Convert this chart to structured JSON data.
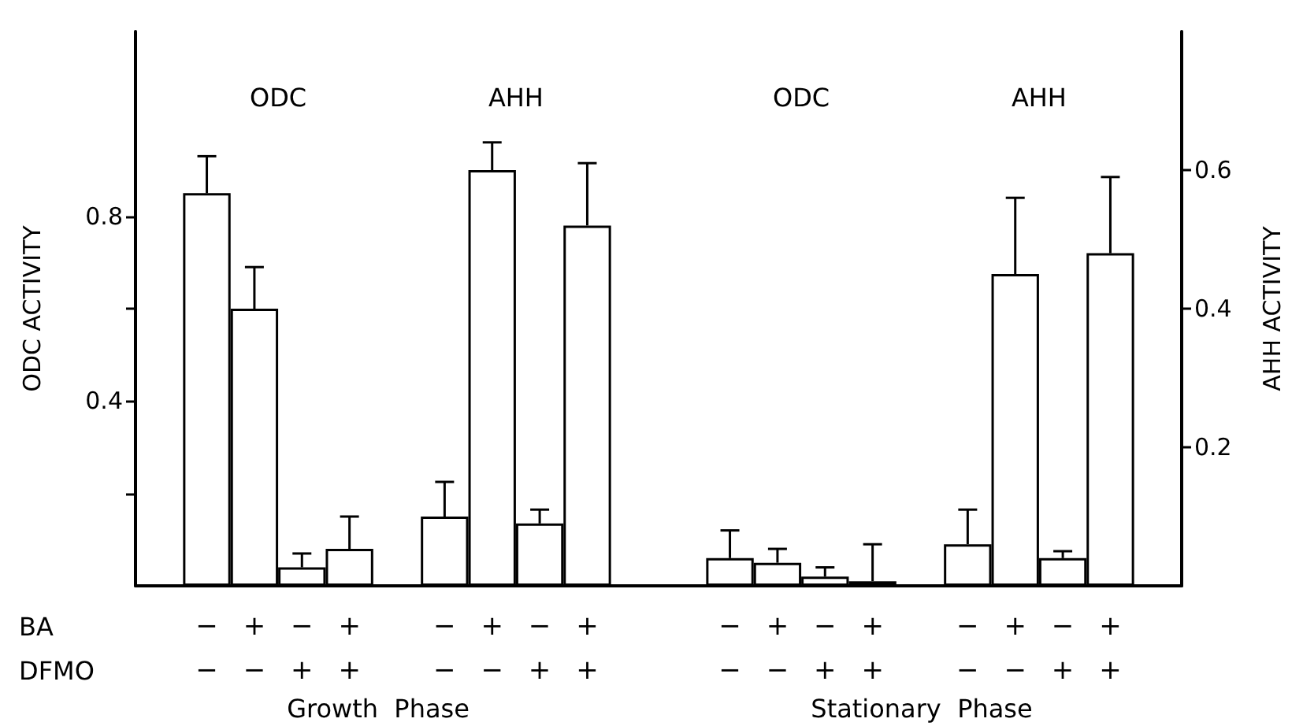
{
  "chart_data": {
    "type": "bar",
    "categories": [
      null,
      "−\n−",
      "+\n−",
      "−\n+",
      "+\n+",
      null,
      "−\n−",
      "+\n−",
      "−\n+",
      "+\n+",
      null,
      null,
      "−\n−",
      "+\n−",
      "−\n+",
      "+\n+",
      null,
      "−\n−",
      "+\n−",
      "−\n+",
      "+\n+",
      null
    ],
    "series": [
      {
        "color": "#ffffff",
        "values": [
          null,
          0.85,
          0.6,
          0.04,
          0.08,
          null,
          null,
          null,
          null,
          null,
          null,
          null,
          null,
          null,
          null,
          null,
          null,
          null,
          null,
          null,
          null,
          null
        ],
        "errors": [
          null,
          [
            0.85,
            0.93
          ],
          [
            0.6,
            0.69
          ],
          [
            0.04,
            0.07
          ],
          [
            0.08,
            0.15
          ],
          null,
          null,
          null,
          null,
          null,
          null,
          null,
          null,
          null,
          null,
          null,
          null,
          null,
          null,
          null,
          null,
          null
        ]
      },
      {
        "color": "#ffffff",
        "axis": "y2",
        "values": [
          null,
          null,
          null,
          null,
          null,
          null,
          0.1,
          0.6,
          0.09,
          0.52,
          null,
          null,
          null,
          null,
          null,
          null,
          null,
          null,
          null,
          null,
          null,
          null
        ],
        "errors": [
          null,
          null,
          null,
          null,
          null,
          null,
          [
            0.1,
            0.15
          ],
          [
            0.6,
            0.64
          ],
          [
            0.09,
            0.11
          ],
          [
            0.52,
            0.61
          ],
          null,
          null,
          null,
          null,
          null,
          null,
          null,
          null,
          null,
          null,
          null,
          null
        ]
      },
      {
        "color": "#ffffff",
        "values": [
          null,
          null,
          null,
          null,
          null,
          null,
          null,
          null,
          null,
          null,
          null,
          null,
          0.06,
          0.05,
          0.02,
          0.01,
          null,
          null,
          null,
          null,
          null,
          null
        ],
        "errors": [
          null,
          null,
          null,
          null,
          null,
          null,
          null,
          null,
          null,
          null,
          null,
          null,
          [
            0.06,
            0.12
          ],
          [
            0.05,
            0.08
          ],
          [
            0.02,
            0.04
          ],
          [
            0.01,
            0.09
          ],
          null,
          null,
          null,
          null,
          null,
          null
        ]
      },
      {
        "color": "#ffffff",
        "axis": "y2",
        "values": [
          null,
          null,
          null,
          null,
          null,
          null,
          null,
          null,
          null,
          null,
          null,
          null,
          null,
          null,
          null,
          null,
          null,
          0.06,
          0.45,
          0.04,
          0.48,
          null
        ],
        "errors": [
          null,
          null,
          null,
          null,
          null,
          null,
          null,
          null,
          null,
          null,
          null,
          null,
          null,
          null,
          null,
          null,
          null,
          [
            0.06,
            0.11
          ],
          [
            0.45,
            0.56
          ],
          [
            0.04,
            0.05
          ],
          [
            0.48,
            0.59
          ],
          null
        ]
      }
    ],
    "ylabel": "ODC ACTIVITY",
    "y2label": "AHH ACTIVITY",
    "ylim": [
      0,
      1.2
    ],
    "yticks": [
      {
        "value": 0.2,
        "label": null
      },
      0.4,
      {
        "value": 0.6,
        "label": null
      },
      0.8
    ],
    "y2lim": [
      0,
      0.8
    ],
    "y2ticks": [
      0.2,
      0.4,
      0.6
    ],
    "annotations": [
      "ODC",
      "AHH",
      "ODC",
      "AHH",
      "BA",
      "DFMO",
      "Growth  Phase",
      "Stationary  Phase"
    ],
    "grid": false
  }
}
